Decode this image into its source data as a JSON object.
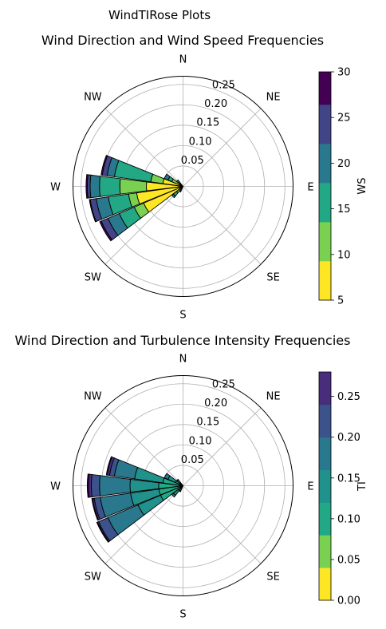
{
  "figure": {
    "suptitle": "WindTIRose Plots",
    "compass": [
      "N",
      "NE",
      "E",
      "SE",
      "S",
      "SW",
      "W",
      "NW"
    ]
  },
  "chart_data": [
    {
      "type": "windrose",
      "title": "Wind Direction and Wind Speed Frequencies",
      "rmax": 0.27,
      "r_ticks": [
        0.05,
        0.1,
        0.15,
        0.2,
        0.25
      ],
      "r_tick_labels": [
        "0.05",
        "0.10",
        "0.15",
        "0.20",
        "0.25"
      ],
      "grid": true,
      "colorbar": {
        "label": "WS",
        "min": 5,
        "max": 30,
        "bins": [
          5,
          9.29,
          13.57,
          17.86,
          22.14,
          26.43,
          30
        ],
        "colors": [
          "#fde725",
          "#7ad151",
          "#22a884",
          "#2a788e",
          "#414487",
          "#440154"
        ],
        "ticks": [
          5,
          10,
          15,
          20,
          25,
          30
        ],
        "tick_labels": [
          "5",
          "10",
          "15",
          "20",
          "25",
          "30"
        ]
      },
      "sectors": [
        {
          "direction": 240,
          "cumulative": [
            0.105,
            0.13,
            0.17,
            0.2,
            0.218,
            0.222
          ]
        },
        {
          "direction": 255,
          "cumulative": [
            0.115,
            0.135,
            0.185,
            0.215,
            0.23,
            0.232
          ]
        },
        {
          "direction": 270,
          "cumulative": [
            0.09,
            0.155,
            0.205,
            0.228,
            0.235,
            0.238
          ]
        },
        {
          "direction": 285,
          "cumulative": [
            0.05,
            0.08,
            0.17,
            0.188,
            0.2,
            0.203
          ]
        },
        {
          "direction": 300,
          "cumulative": [
            0.01,
            0.03,
            0.04,
            0.05,
            0.05,
            0.05
          ]
        },
        {
          "direction": 225,
          "cumulative": [
            0.01,
            0.02,
            0.03,
            0.035,
            0.035,
            0.035
          ]
        },
        {
          "direction": 315,
          "cumulative": [
            0.01,
            0.015,
            0.02,
            0.02,
            0.02,
            0.02
          ]
        },
        {
          "direction": 210,
          "cumulative": [
            0.008,
            0.012,
            0.015,
            0.015,
            0.015,
            0.015
          ]
        }
      ]
    },
    {
      "type": "windrose",
      "title": "Wind Direction and Turbulence Intensity Frequencies",
      "rmax": 0.27,
      "r_ticks": [
        0.05,
        0.1,
        0.15,
        0.2,
        0.25
      ],
      "r_tick_labels": [
        "0.05",
        "0.10",
        "0.15",
        "0.20",
        "0.25"
      ],
      "grid": true,
      "colorbar": {
        "label": "TI",
        "min": 0,
        "max": 0.28,
        "bins": [
          0,
          0.04,
          0.08,
          0.12,
          0.16,
          0.2,
          0.24,
          0.28
        ],
        "colors": [
          "#fde725",
          "#7ad151",
          "#22a884",
          "#21918c",
          "#2a788e",
          "#3b528b",
          "#472d7b",
          "#440154"
        ],
        "ticks": [
          0.0,
          0.05,
          0.1,
          0.15,
          0.2,
          0.25
        ],
        "tick_labels": [
          "0.00",
          "0.05",
          "0.10",
          "0.15",
          "0.20",
          "0.25"
        ]
      },
      "sectors": [
        {
          "direction": 240,
          "cumulative": [
            0.0,
            0.005,
            0.06,
            0.12,
            0.2,
            0.225,
            0.228,
            0.23
          ]
        },
        {
          "direction": 255,
          "cumulative": [
            0.0,
            0.005,
            0.06,
            0.13,
            0.205,
            0.22,
            0.224,
            0.226
          ]
        },
        {
          "direction": 270,
          "cumulative": [
            0.0,
            0.005,
            0.06,
            0.13,
            0.205,
            0.225,
            0.232,
            0.235
          ]
        },
        {
          "direction": 285,
          "cumulative": [
            0.0,
            0.003,
            0.05,
            0.12,
            0.17,
            0.182,
            0.188,
            0.19
          ]
        },
        {
          "direction": 300,
          "cumulative": [
            0.0,
            0.002,
            0.02,
            0.04,
            0.05,
            0.05,
            0.05,
            0.05
          ]
        },
        {
          "direction": 225,
          "cumulative": [
            0.0,
            0.002,
            0.015,
            0.03,
            0.035,
            0.035,
            0.035,
            0.035
          ]
        },
        {
          "direction": 315,
          "cumulative": [
            0.0,
            0.001,
            0.01,
            0.018,
            0.02,
            0.02,
            0.02,
            0.02
          ]
        },
        {
          "direction": 210,
          "cumulative": [
            0.0,
            0.001,
            0.008,
            0.014,
            0.016,
            0.016,
            0.016,
            0.016
          ]
        }
      ]
    }
  ]
}
